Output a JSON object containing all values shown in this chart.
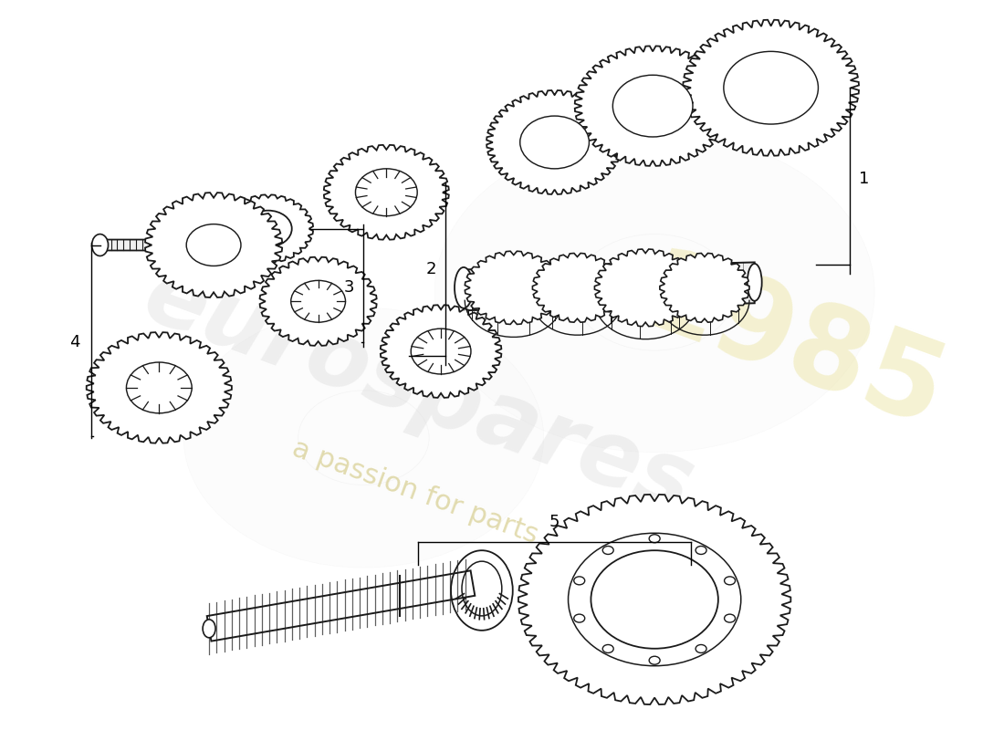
{
  "background_color": "#ffffff",
  "gear_color": "#1a1a1a",
  "watermark_eurospares_color": "#cccccc",
  "watermark_year_color": "#e8e0a0",
  "watermark_text_color": "#d4c870",
  "label_color": "#000000",
  "fig_width": 11.0,
  "fig_height": 8.0,
  "dpi": 100
}
